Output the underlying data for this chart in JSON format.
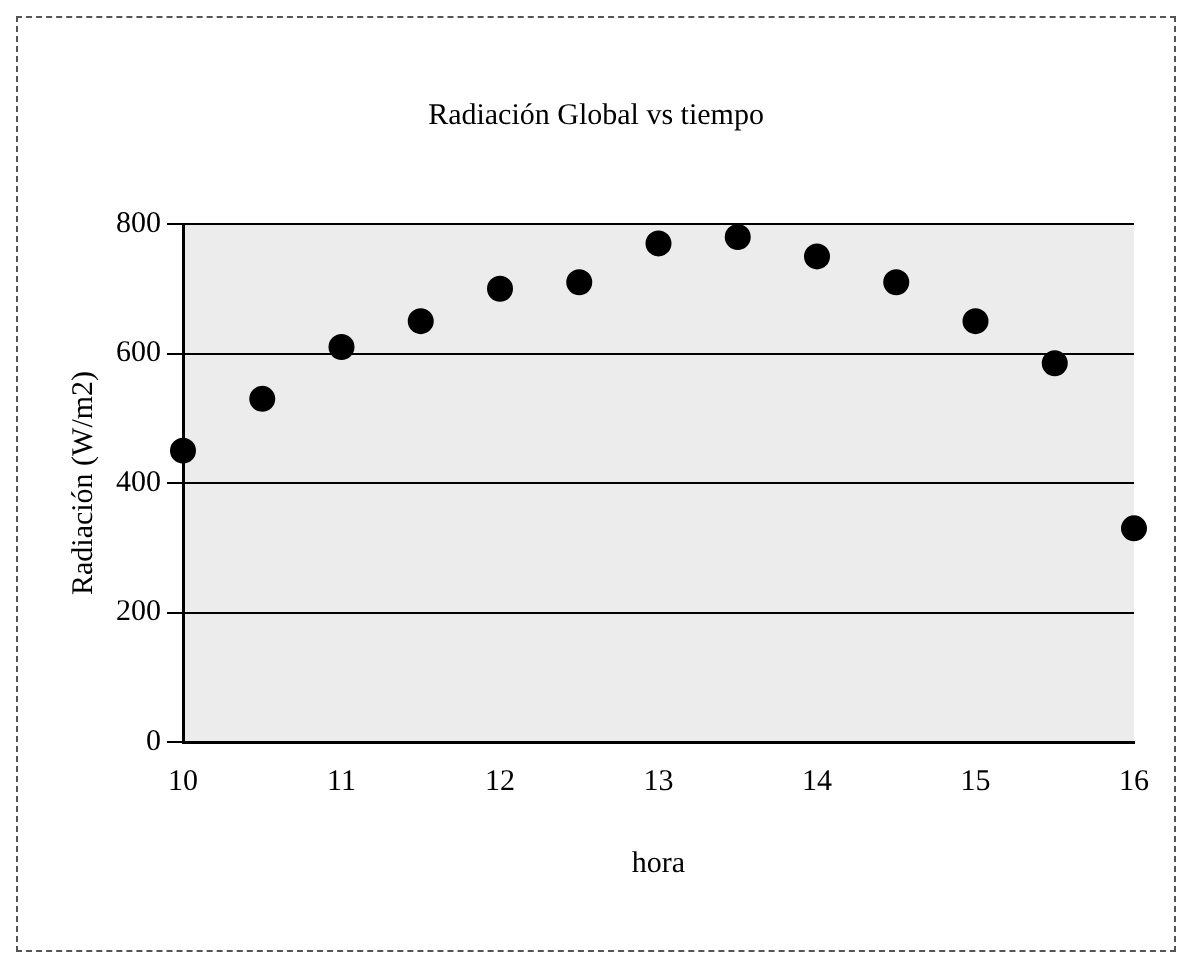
{
  "chart_data": {
    "type": "scatter",
    "title": "Radiación Global vs tiempo",
    "xlabel": "hora",
    "ylabel": "Radiación (W/m2)",
    "x": [
      10,
      10.5,
      11,
      11.5,
      12,
      12.5,
      13,
      13.5,
      14,
      14.5,
      15,
      15.5,
      16
    ],
    "series": [
      {
        "color": "#000000",
        "values": [
          450,
          530,
          610,
          650,
          700,
          710,
          770,
          780,
          750,
          710,
          650,
          585,
          330
        ]
      }
    ],
    "xlim": [
      10,
      16
    ],
    "xticks": [
      10,
      11,
      12,
      13,
      14,
      15,
      16
    ],
    "ylim": [
      0,
      800
    ],
    "yticks": [
      0,
      200,
      400,
      600,
      800
    ],
    "grid": "y",
    "legend": false,
    "marker": "circle"
  }
}
